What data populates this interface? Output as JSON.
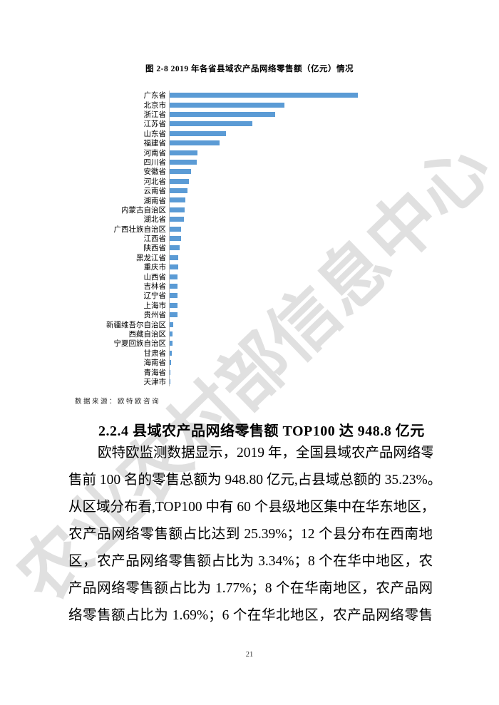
{
  "watermark": {
    "text": "农业农村部信息中心"
  },
  "figure": {
    "title": "图 2-8 2019 年各省县域农产品网络零售额（亿元）情况",
    "source": "数据来源：欧特欧咨询"
  },
  "chart_data": {
    "type": "bar",
    "orientation": "horizontal",
    "title": "图 2-8 2019 年各省县域农产品网络零售额（亿元）情况",
    "unit": "亿元",
    "bar_color": "#5b9bd5",
    "axis_color": "#bfbfbf",
    "value_axis_shown": false,
    "grid": false,
    "legend": false,
    "note": "No value axis or data labels are shown in the figure; values below are relative estimates from bar lengths with the longest bar (广东省) normalized to 100.",
    "categories": [
      "广东省",
      "北京市",
      "浙江省",
      "江苏省",
      "山东省",
      "福建省",
      "河南省",
      "四川省",
      "安徽省",
      "河北省",
      "云南省",
      "湖南省",
      "内蒙古自治区",
      "湖北省",
      "广西壮族自治区",
      "江西省",
      "陕西省",
      "黑龙江省",
      "重庆市",
      "山西省",
      "吉林省",
      "辽宁省",
      "上海市",
      "贵州省",
      "新疆维吾尔自治区",
      "西藏自治区",
      "宁夏回族自治区",
      "甘肃省",
      "海南省",
      "青海省",
      "天津市"
    ],
    "values": [
      100,
      61,
      56,
      44,
      30,
      26.5,
      14.7,
      14.3,
      11.5,
      10.2,
      9.4,
      8.5,
      8.0,
      7.6,
      6.2,
      6.0,
      5.4,
      4.7,
      4.5,
      4.2,
      4.1,
      4.1,
      4.0,
      4.0,
      1.9,
      1.5,
      1.4,
      1.1,
      0.8,
      0.5,
      0.2
    ]
  },
  "section": {
    "heading": "2.2.4 县域农产品网络零售额 TOP100 达 948.8 亿元",
    "paragraph_lines": [
      "欧特欧监测数据显示，2019 年，全国县域农产品网络零",
      "售前 100 名的零售总额为 948.80 亿元,占县域总额的 35.23%。",
      "从区域分布看,TOP100 中有 60 个县级地区集中在华东地区，",
      "农产品网络零售额占比达到 25.39%；12 个县分布在西南地",
      "区，农产品网络零售额占比为 3.34%；8 个在华中地区，农",
      "产品网络零售额占比为 1.77%；8 个在华南地区，农产品网",
      "络零售额占比为 1.69%；6 个在华北地区，农产品网络零售"
    ]
  },
  "page": {
    "page_number": "21"
  }
}
